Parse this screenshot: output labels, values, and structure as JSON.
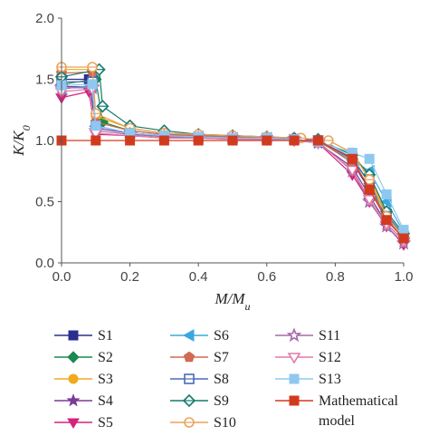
{
  "chart_data": {
    "type": "line",
    "title": "",
    "xlabel": {
      "base": "M",
      "sub": "u"
    },
    "ylabel": {
      "base": "K",
      "sub": "0"
    },
    "xlim": [
      0.0,
      1.0
    ],
    "ylim": [
      0.0,
      2.0
    ],
    "xticks": [
      "0.0",
      "0.2",
      "0.4",
      "0.6",
      "0.8",
      "1.0"
    ],
    "yticks": [
      "0.0",
      "0.5",
      "1.0",
      "1.5",
      "2.0"
    ],
    "grid": false,
    "legend_position": "bottom",
    "series": [
      {
        "name": "S1",
        "color": "#2a2f8f",
        "marker": "square",
        "x": [
          0.0,
          0.08,
          0.1,
          0.2,
          0.3,
          0.4,
          0.5,
          0.6,
          0.68,
          0.75,
          0.85,
          0.9,
          0.95,
          1.0
        ],
        "y": [
          1.5,
          1.5,
          1.12,
          1.06,
          1.04,
          1.03,
          1.02,
          1.02,
          1.01,
          1.0,
          0.82,
          0.6,
          0.38,
          0.2
        ]
      },
      {
        "name": "S2",
        "color": "#1a8a50",
        "marker": "diamond",
        "x": [
          0.0,
          0.1,
          0.12,
          0.2,
          0.3,
          0.4,
          0.5,
          0.6,
          0.68,
          0.75,
          0.85,
          0.9,
          0.95,
          1.0
        ],
        "y": [
          1.46,
          1.5,
          1.15,
          1.08,
          1.05,
          1.04,
          1.03,
          1.02,
          1.02,
          1.0,
          0.85,
          0.65,
          0.35,
          0.2
        ]
      },
      {
        "name": "S3",
        "color": "#f0aa1c",
        "marker": "circle",
        "x": [
          0.0,
          0.09,
          0.1,
          0.2,
          0.3,
          0.4,
          0.5,
          0.6,
          0.7,
          0.78,
          0.85,
          0.9,
          0.95,
          1.0
        ],
        "y": [
          1.58,
          1.58,
          1.2,
          1.1,
          1.06,
          1.05,
          1.04,
          1.03,
          1.02,
          1.0,
          0.9,
          0.7,
          0.4,
          0.22
        ]
      },
      {
        "name": "S4",
        "color": "#7a3a9a",
        "marker": "star",
        "x": [
          0.0,
          0.09,
          0.1,
          0.2,
          0.3,
          0.4,
          0.5,
          0.6,
          0.68,
          0.75,
          0.85,
          0.9,
          0.95,
          1.0
        ],
        "y": [
          1.44,
          1.44,
          1.1,
          1.06,
          1.03,
          1.02,
          1.02,
          1.01,
          1.01,
          0.98,
          0.78,
          0.55,
          0.32,
          0.18
        ]
      },
      {
        "name": "S5",
        "color": "#d4237a",
        "marker": "triangle-down",
        "x": [
          0.0,
          0.08,
          0.1,
          0.2,
          0.3,
          0.4,
          0.5,
          0.6,
          0.68,
          0.75,
          0.85,
          0.9,
          0.95,
          1.0
        ],
        "y": [
          1.35,
          1.4,
          1.05,
          1.04,
          1.02,
          1.02,
          1.01,
          1.01,
          1.0,
          0.98,
          0.72,
          0.5,
          0.3,
          0.15
        ]
      },
      {
        "name": "S6",
        "color": "#3aa8e0",
        "marker": "triangle-left",
        "x": [
          0.0,
          0.09,
          0.1,
          0.2,
          0.3,
          0.4,
          0.5,
          0.6,
          0.68,
          0.75,
          0.85,
          0.9,
          0.95,
          1.0
        ],
        "y": [
          1.42,
          1.45,
          1.12,
          1.06,
          1.04,
          1.03,
          1.02,
          1.02,
          1.01,
          0.99,
          0.84,
          0.75,
          0.5,
          0.25
        ]
      },
      {
        "name": "S7",
        "color": "#d06a52",
        "marker": "pentagon",
        "x": [
          0.0,
          0.09,
          0.1,
          0.2,
          0.3,
          0.4,
          0.5,
          0.6,
          0.68,
          0.75,
          0.85,
          0.9,
          0.95,
          1.0
        ],
        "y": [
          1.55,
          1.56,
          1.15,
          1.08,
          1.05,
          1.04,
          1.03,
          1.02,
          1.02,
          1.0,
          0.82,
          0.62,
          0.36,
          0.2
        ]
      },
      {
        "name": "S8",
        "color": "#4a6bb8",
        "marker": "square-open",
        "x": [
          0.0,
          0.09,
          0.1,
          0.2,
          0.3,
          0.4,
          0.5,
          0.6,
          0.68,
          0.75,
          0.85,
          0.9,
          0.95,
          1.0
        ],
        "y": [
          1.48,
          1.48,
          1.12,
          1.06,
          1.04,
          1.03,
          1.02,
          1.02,
          1.01,
          1.0,
          0.86,
          0.65,
          0.4,
          0.22
        ]
      },
      {
        "name": "S9",
        "color": "#157a6e",
        "marker": "diamond-open",
        "x": [
          0.0,
          0.11,
          0.12,
          0.2,
          0.3,
          0.4,
          0.5,
          0.6,
          0.68,
          0.75,
          0.85,
          0.9,
          0.95,
          1.0
        ],
        "y": [
          1.52,
          1.58,
          1.28,
          1.12,
          1.08,
          1.05,
          1.04,
          1.03,
          1.02,
          1.01,
          0.88,
          0.72,
          0.42,
          0.24
        ]
      },
      {
        "name": "S10",
        "color": "#e8a45a",
        "marker": "circle-open",
        "x": [
          0.0,
          0.09,
          0.1,
          0.2,
          0.3,
          0.4,
          0.5,
          0.6,
          0.7,
          0.78,
          0.85,
          0.9,
          0.95,
          1.0
        ],
        "y": [
          1.6,
          1.6,
          1.22,
          1.1,
          1.06,
          1.05,
          1.04,
          1.03,
          1.02,
          1.0,
          0.9,
          0.68,
          0.38,
          0.2
        ]
      },
      {
        "name": "S11",
        "color": "#a76aa8",
        "marker": "star-open",
        "x": [
          0.0,
          0.09,
          0.1,
          0.2,
          0.3,
          0.4,
          0.5,
          0.6,
          0.68,
          0.75,
          0.85,
          0.9,
          0.95,
          1.0
        ],
        "y": [
          1.43,
          1.43,
          1.08,
          1.05,
          1.03,
          1.02,
          1.02,
          1.01,
          1.01,
          0.99,
          0.75,
          0.5,
          0.3,
          0.16
        ]
      },
      {
        "name": "S12",
        "color": "#e07aa8",
        "marker": "triangle-down-open",
        "x": [
          0.0,
          0.09,
          0.1,
          0.2,
          0.3,
          0.4,
          0.5,
          0.6,
          0.68,
          0.75,
          0.85,
          0.9,
          0.95,
          1.0
        ],
        "y": [
          1.4,
          1.42,
          1.06,
          1.04,
          1.02,
          1.02,
          1.01,
          1.01,
          1.0,
          0.98,
          0.76,
          0.52,
          0.32,
          0.18
        ]
      },
      {
        "name": "S13",
        "color": "#8ec8f0",
        "marker": "square-light",
        "x": [
          0.0,
          0.09,
          0.1,
          0.2,
          0.3,
          0.4,
          0.5,
          0.6,
          0.68,
          0.75,
          0.85,
          0.9,
          0.95,
          1.0
        ],
        "y": [
          1.45,
          1.46,
          1.12,
          1.06,
          1.04,
          1.03,
          1.02,
          1.02,
          1.01,
          0.99,
          0.9,
          0.85,
          0.56,
          0.27
        ]
      },
      {
        "name": "Mathematical model",
        "color": "#d23a1e",
        "marker": "square",
        "x": [
          0.0,
          0.1,
          0.2,
          0.3,
          0.4,
          0.5,
          0.6,
          0.68,
          0.75,
          0.85,
          0.9,
          0.95,
          1.0
        ],
        "y": [
          1.0,
          1.0,
          1.0,
          1.0,
          1.0,
          1.0,
          1.0,
          1.0,
          1.0,
          0.85,
          0.6,
          0.35,
          0.2
        ]
      }
    ]
  }
}
